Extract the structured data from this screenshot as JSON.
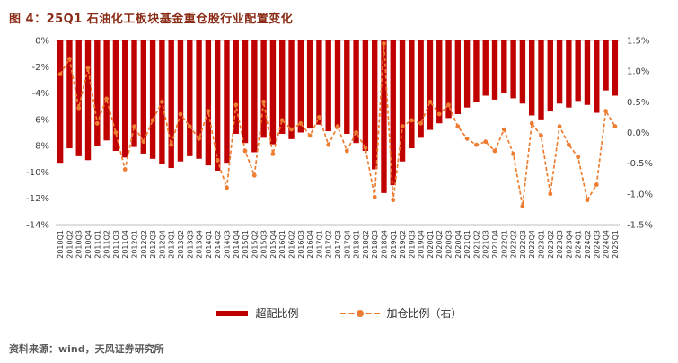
{
  "title": "图 4：25Q1 石油化工板块基金重仓股行业配置变化",
  "source": "资料来源：wind，天风证券研究所",
  "colors": {
    "bar": "#C00000",
    "line": "#ED7D31",
    "title": "#8A2B16",
    "axis_text": "#404040",
    "axis_line": "#BFBFBF"
  },
  "legend": {
    "items": [
      {
        "label": "超配比例"
      },
      {
        "label": "加仓比例（右）"
      }
    ]
  },
  "chart_data": {
    "type": "combo",
    "title": "25Q1 石油化工板块基金重仓股行业配置变化",
    "grid": false,
    "legend_position": "bottom",
    "categories": [
      "2010Q1",
      "2010Q2",
      "2010Q3",
      "2010Q4",
      "2011Q1",
      "2011Q2",
      "2011Q3",
      "2011Q4",
      "2012Q1",
      "2012Q2",
      "2012Q3",
      "2012Q4",
      "2013Q1",
      "2013Q2",
      "2013Q3",
      "2013Q4",
      "2014Q1",
      "2014Q2",
      "2014Q3",
      "2014Q4",
      "2015Q1",
      "2015Q2",
      "2015Q3",
      "2015Q4",
      "2016Q1",
      "2016Q2",
      "2016Q3",
      "2016Q4",
      "2017Q1",
      "2017Q2",
      "2017Q3",
      "2017Q4",
      "2018Q1",
      "2018Q2",
      "2018Q3",
      "2018Q4",
      "2019Q1",
      "2019Q2",
      "2019Q3",
      "2019Q4",
      "2020Q1",
      "2020Q2",
      "2020Q3",
      "2020Q4",
      "2021Q1",
      "2021Q2",
      "2021Q3",
      "2021Q4",
      "2022Q1",
      "2022Q2",
      "2022Q3",
      "2022Q4",
      "2023Q1",
      "2023Q2",
      "2023Q3",
      "2023Q4",
      "2024Q1",
      "2024Q2",
      "2024Q3",
      "2024Q4",
      "2025Q1"
    ],
    "series": [
      {
        "name": "超配比例",
        "type": "bar",
        "axis": "left",
        "color": "#C00000",
        "values": [
          -9.3,
          -8.2,
          -8.8,
          -9.1,
          -8.0,
          -7.6,
          -8.4,
          -8.9,
          -8.1,
          -8.6,
          -9.0,
          -9.4,
          -9.7,
          -9.2,
          -8.8,
          -9.0,
          -9.5,
          -9.9,
          -9.3,
          -7.1,
          -7.8,
          -8.5,
          -7.4,
          -7.9,
          -7.1,
          -7.5,
          -7.0,
          -6.7,
          -6.4,
          -6.9,
          -6.6,
          -7.1,
          -7.8,
          -8.4,
          -9.8,
          -11.6,
          -11.0,
          -9.2,
          -8.2,
          -7.4,
          -6.8,
          -6.3,
          -5.9,
          -5.6,
          -5.1,
          -4.7,
          -4.2,
          -4.5,
          -4.0,
          -4.4,
          -4.8,
          -5.7,
          -6.0,
          -5.4,
          -4.8,
          -5.1,
          -4.6,
          -4.9,
          -5.5,
          -3.8,
          -4.2
        ]
      },
      {
        "name": "加仓比例（右）",
        "type": "line",
        "style": "dashed",
        "marker": "circle",
        "axis": "right",
        "color": "#ED7D31",
        "values": [
          0.95,
          1.2,
          0.4,
          1.05,
          0.15,
          0.55,
          0.0,
          -0.6,
          0.1,
          -0.15,
          0.2,
          0.5,
          -0.2,
          0.3,
          0.1,
          -0.1,
          0.35,
          -0.45,
          -0.9,
          0.45,
          -0.3,
          -0.7,
          0.5,
          -0.35,
          0.2,
          0.05,
          0.15,
          -0.05,
          0.25,
          -0.2,
          0.1,
          -0.3,
          0.0,
          -0.25,
          -1.05,
          1.45,
          -1.1,
          0.1,
          0.2,
          0.15,
          0.5,
          0.3,
          0.45,
          0.1,
          -0.1,
          -0.2,
          -0.15,
          -0.3,
          0.05,
          -0.35,
          -1.2,
          0.15,
          -0.05,
          -1.0,
          0.1,
          -0.2,
          -0.4,
          -1.1,
          -0.85,
          0.35,
          0.1
        ]
      }
    ],
    "left_axis": {
      "min": -14,
      "max": 0,
      "ticks": [
        "0%",
        "-2%",
        "-4%",
        "-6%",
        "-8%",
        "-10%",
        "-12%",
        "-14%"
      ]
    },
    "right_axis": {
      "min": -1.5,
      "max": 1.5,
      "ticks": [
        "1.5%",
        "1.0%",
        "0.5%",
        "0.0%",
        "-0.5%",
        "-1.0%",
        "-1.5%"
      ]
    }
  }
}
